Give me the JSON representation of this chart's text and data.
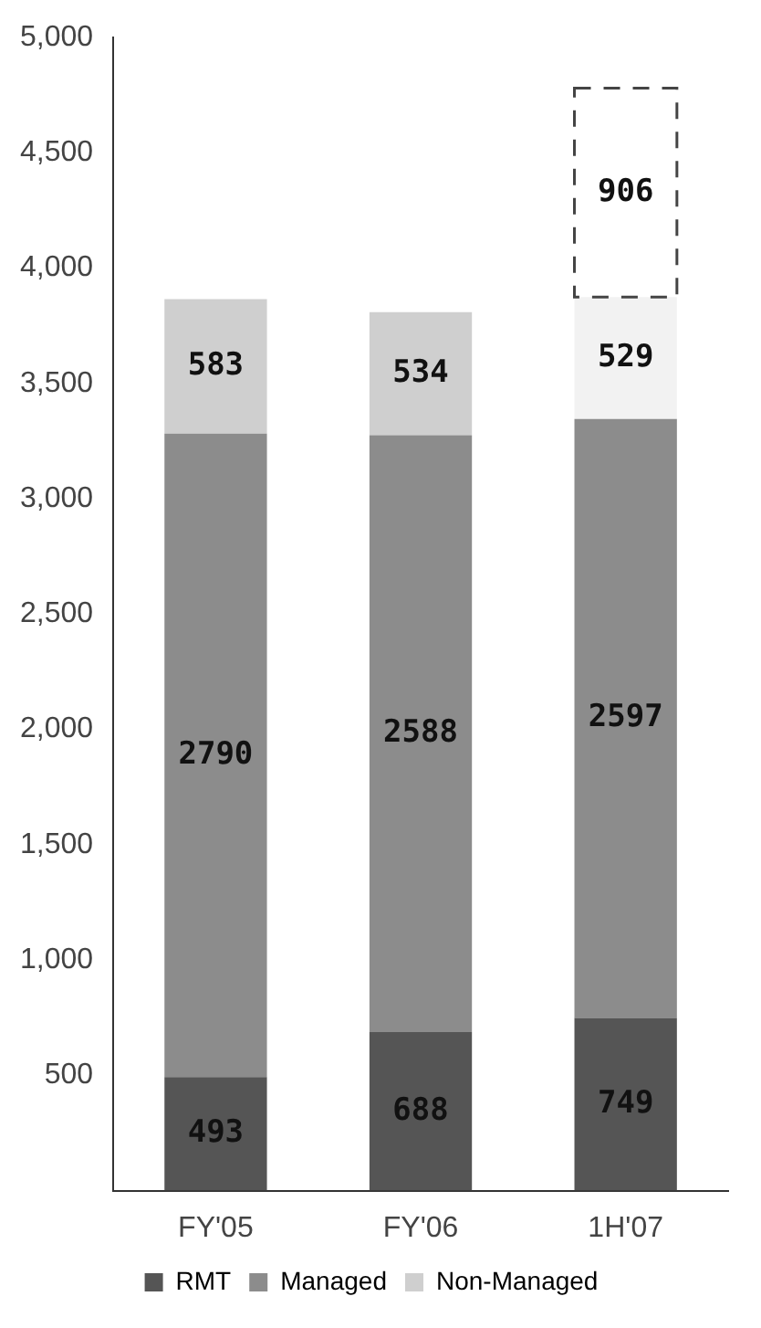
{
  "chart_data": {
    "type": "bar",
    "stacked": true,
    "categories": [
      "FY'05",
      "FY'06",
      "1H'07"
    ],
    "series": [
      {
        "name": "RMT",
        "color": "#555555",
        "values": [
          493,
          688,
          749
        ]
      },
      {
        "name": "Managed",
        "color": "#8c8c8c",
        "values": [
          2790,
          2588,
          2597
        ]
      },
      {
        "name": "Non-Managed",
        "color": "#cfcfcf",
        "colors": [
          "#cfcfcf",
          "#cfcfcf",
          "#f2f2f2"
        ],
        "values": [
          583,
          534,
          529
        ]
      },
      {
        "color": "#ffffff",
        "line_style": "dashed",
        "values": [
          null,
          null,
          906
        ]
      }
    ],
    "ylim": [
      0,
      5000
    ],
    "yticks": [
      {
        "value": 0,
        "label": null
      },
      {
        "value": 500,
        "label": "500"
      },
      {
        "value": 1000,
        "label": "1,000"
      },
      {
        "value": 1500,
        "label": "1,500"
      },
      {
        "value": 2000,
        "label": "2,000"
      },
      {
        "value": 2500,
        "label": "2,500"
      },
      {
        "value": 3000,
        "label": "3,000"
      },
      {
        "value": 3500,
        "label": "3,500"
      },
      {
        "value": 4000,
        "label": "4,000"
      },
      {
        "value": 4500,
        "label": "4,500"
      },
      {
        "value": 5000,
        "label": "5,000"
      }
    ],
    "grid": false,
    "legend": "bottom",
    "data_labels": true
  }
}
